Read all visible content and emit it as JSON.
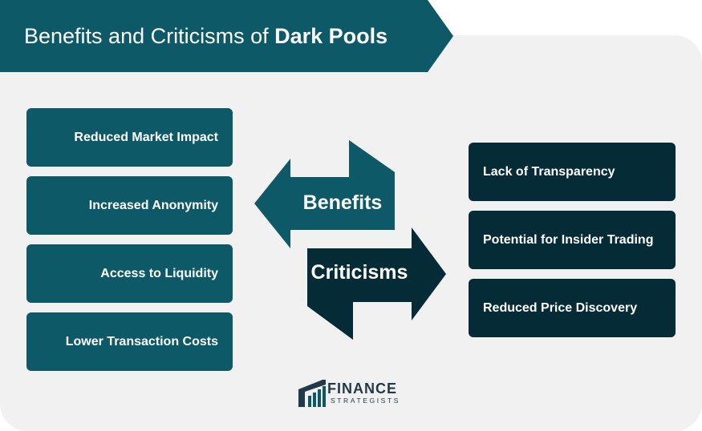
{
  "title": {
    "prefix": "Benefits and Criticisms of",
    "bold": "Dark Pools"
  },
  "benefits": {
    "label": "Benefits",
    "items": [
      "Reduced Market Impact",
      "Increased Anonymity",
      "Access to Liquidity",
      "Lower Transaction Costs"
    ]
  },
  "criticisms": {
    "label": "Criticisms",
    "items": [
      "Lack of Transparency",
      "Potential for Insider Trading",
      "Reduced Price Discovery"
    ]
  },
  "logo": {
    "name": "FINANCE",
    "tagline": "STRATEGISTS"
  },
  "colors": {
    "banner": "#0d5968",
    "benefit_box": "#0d5968",
    "criticism_box": "#052c36",
    "benefits_arrow": "#0d5968",
    "benefits_arrow_shade": "#074451",
    "criticisms_arrow": "#052c36",
    "criticisms_arrow_shade": "#021a20",
    "panel": "#f1f1f1"
  }
}
